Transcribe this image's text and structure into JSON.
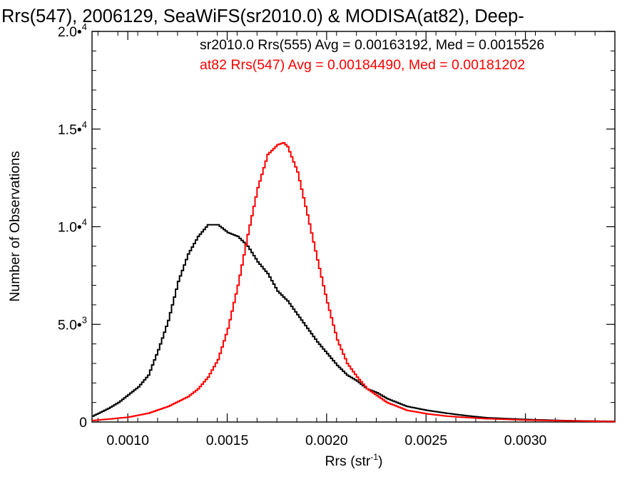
{
  "chart_data": {
    "type": "line",
    "title": "Rrs(547), 2006129, SeaWiFS(sr2010.0) & MODISA(at82), Deep-",
    "xlabel": "Rrs (str",
    "xlabel_exp": "-1",
    "xlabel_close": ")",
    "ylabel": "Number of Observations",
    "xlim": [
      0.00082,
      0.00345
    ],
    "ylim": [
      0,
      20000
    ],
    "x_ticks": [
      {
        "value": 0.001,
        "label": "0.0010"
      },
      {
        "value": 0.0015,
        "label": "0.0015"
      },
      {
        "value": 0.002,
        "label": "0.0020"
      },
      {
        "value": 0.0025,
        "label": "0.0025"
      },
      {
        "value": 0.003,
        "label": "0.0030"
      }
    ],
    "y_ticks": [
      {
        "value": 0,
        "mant": "0",
        "exp": ""
      },
      {
        "value": 5000,
        "mant": "5.0•",
        "exp": "3"
      },
      {
        "value": 10000,
        "mant": "1.0•",
        "exp": "4"
      },
      {
        "value": 15000,
        "mant": "1.5•",
        "exp": "4"
      },
      {
        "value": 20000,
        "mant": "2.0•",
        "exp": "4"
      }
    ],
    "grid": false,
    "legend": "top-right",
    "series": [
      {
        "text": "sr2010.0 Rrs(555) Avg = 0.00163192, Med = 0.0015526",
        "color": "#000000",
        "x": [
          0.00082,
          0.0009,
          0.00095,
          0.001,
          0.00105,
          0.0011,
          0.00115,
          0.0012,
          0.00125,
          0.0013,
          0.00135,
          0.0014,
          0.00145,
          0.0015,
          0.00155,
          0.0016,
          0.00165,
          0.0017,
          0.00175,
          0.0018,
          0.00185,
          0.0019,
          0.00195,
          0.002,
          0.00205,
          0.0021,
          0.00215,
          0.0022,
          0.00225,
          0.0023,
          0.0024,
          0.0025,
          0.0026,
          0.0027,
          0.0028,
          0.003,
          0.0032,
          0.00345
        ],
        "y": [
          300,
          700,
          1000,
          1400,
          1800,
          2400,
          3700,
          5200,
          7200,
          8600,
          9500,
          10100,
          10100,
          9700,
          9500,
          9000,
          8200,
          7600,
          6700,
          6200,
          5500,
          4800,
          4100,
          3500,
          2900,
          2400,
          2100,
          1700,
          1500,
          1200,
          800,
          600,
          450,
          320,
          220,
          130,
          70,
          30
        ]
      },
      {
        "text": "at82 Rrs(547) Avg = 0.00184490, Med = 0.00181202",
        "color": "#ff0000",
        "x": [
          0.00082,
          0.0009,
          0.001,
          0.0011,
          0.0012,
          0.0013,
          0.00135,
          0.0014,
          0.00145,
          0.0015,
          0.00155,
          0.0016,
          0.00165,
          0.0017,
          0.00175,
          0.00178,
          0.0018,
          0.00185,
          0.0019,
          0.00195,
          0.002,
          0.00205,
          0.0021,
          0.00215,
          0.0022,
          0.0023,
          0.0024,
          0.0025,
          0.0026,
          0.0027,
          0.0028,
          0.003,
          0.0032,
          0.00345
        ],
        "y": [
          80,
          150,
          250,
          450,
          800,
          1300,
          1700,
          2300,
          3200,
          4800,
          7000,
          9600,
          12000,
          13700,
          14200,
          14300,
          14100,
          12800,
          10600,
          8300,
          6100,
          4200,
          3000,
          2300,
          1700,
          1000,
          600,
          420,
          300,
          230,
          170,
          100,
          60,
          20
        ]
      }
    ]
  }
}
